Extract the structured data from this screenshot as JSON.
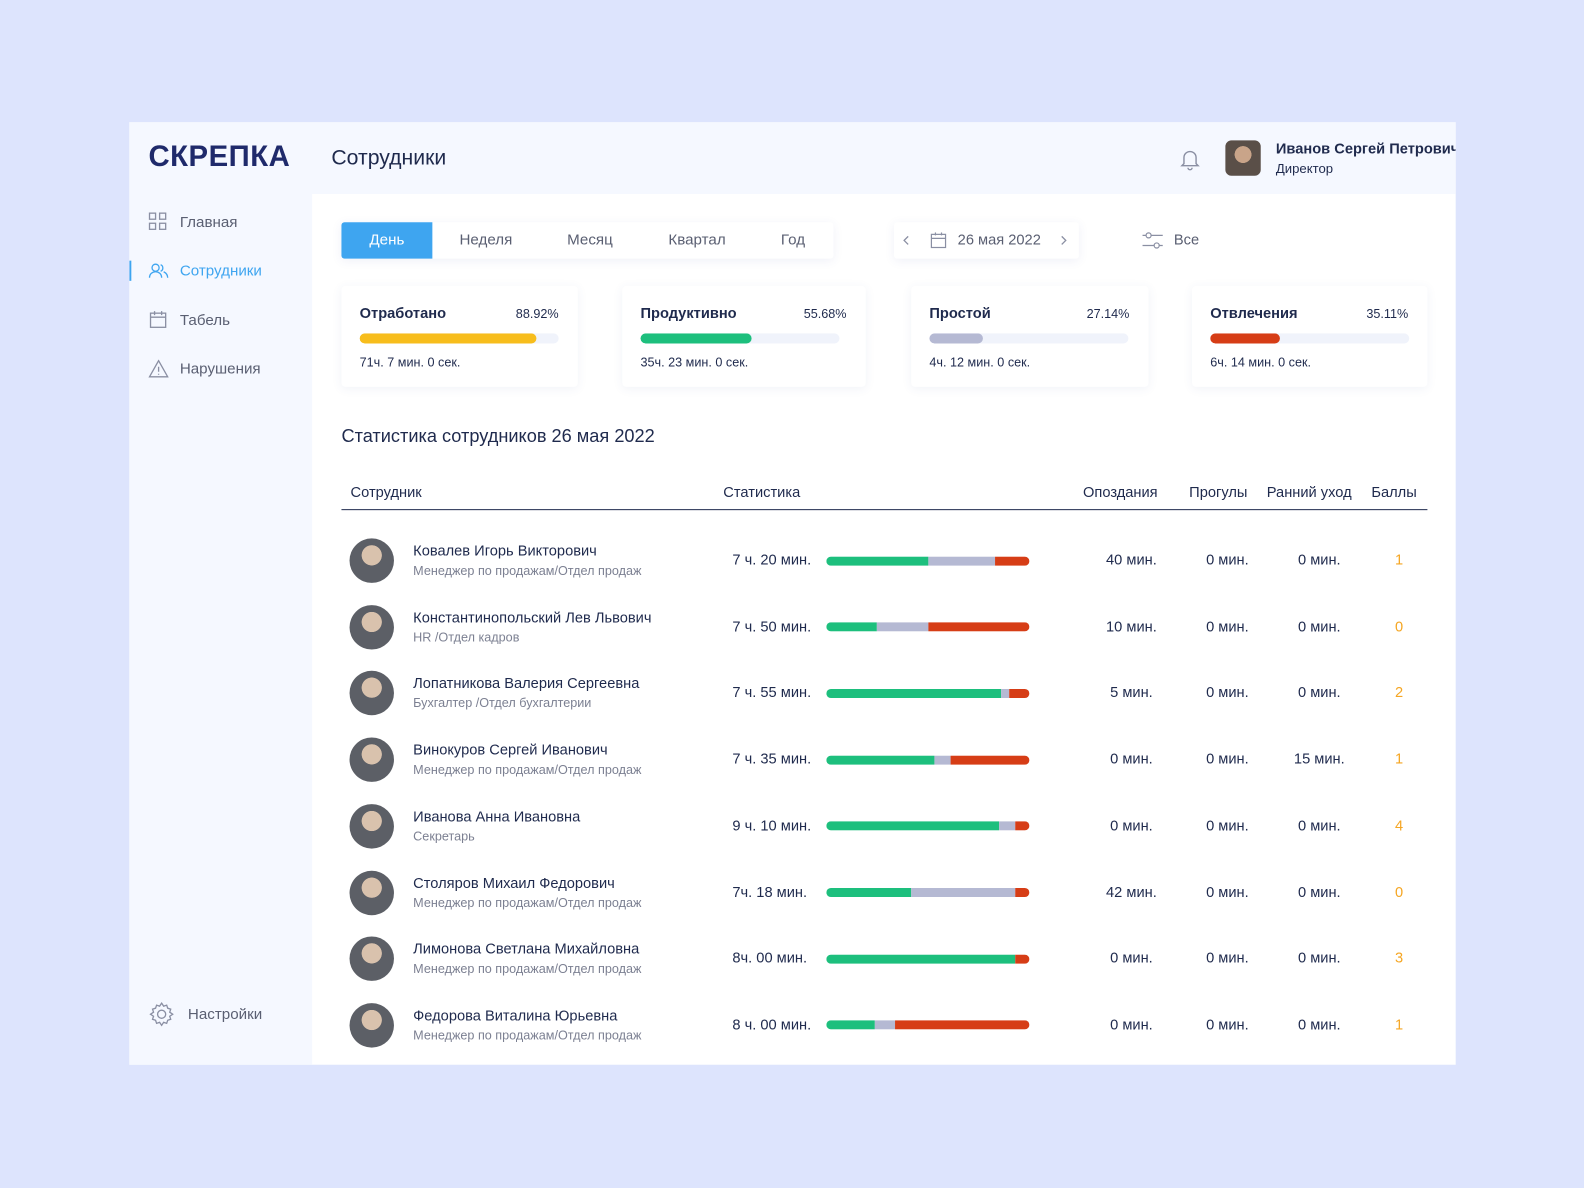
{
  "header": {
    "logo": "СКРЕПКА",
    "title": "Сотрудники",
    "user": {
      "name": "Иванов Сергей Петрович",
      "role": "Директор"
    }
  },
  "sidebar": {
    "items": [
      "Главная",
      "Сотрудники",
      "Табель",
      "Нарушения"
    ],
    "active": 1,
    "settings": "Настройки"
  },
  "periods": {
    "items": [
      "День",
      "Неделя",
      "Месяц",
      "Квартал",
      "Год"
    ],
    "active": 0
  },
  "date": "26 мая 2022",
  "filter": "Все",
  "cards": [
    {
      "title": "Отработано",
      "percent": {
        "value": 88.92,
        "label": "88.92%"
      },
      "color": "#f7bd1c",
      "time": "71ч. 7 мин. 0 сек."
    },
    {
      "title": "Продуктивно",
      "percent": {
        "value": 55.68,
        "label": "55.68%"
      },
      "color": "#1dbf7d",
      "time": "35ч. 23 мин. 0 сек."
    },
    {
      "title": "Простой",
      "percent": {
        "value": 27.14,
        "label": "27.14%"
      },
      "color": "#b5b9d3",
      "time": "4ч. 12 мин. 0 сек."
    },
    {
      "title": "Отвлечения",
      "percent": {
        "value": 35.11,
        "label": "35.11%"
      },
      "color": "#d63d16",
      "time": "6ч. 14 мин. 0 сек."
    }
  ],
  "table": {
    "title": "Статистика сотрудников 26 мая 2022",
    "columns": [
      "Сотрудник",
      "Статистика",
      "Опоздания",
      "Прогулы",
      "Ранний уход",
      "Баллы"
    ],
    "segment_colors": [
      "#1dbf7d",
      "#b5b9d3",
      "#d63d16"
    ],
    "rows": [
      {
        "name": "Ковалев Игорь Викторович",
        "position": "Менеджер по продажам/Отдел продаж",
        "duration": "7 ч. 20 мин.",
        "segments": [
          50,
          33,
          17
        ],
        "late": "40 мин.",
        "absences": "0 мин.",
        "early_leave": "0 мин.",
        "score": 1
      },
      {
        "name": "Константинопольский Лев Львович",
        "position": "HR /Отдел кадров",
        "duration": "7 ч. 50 мин.",
        "segments": [
          25,
          25,
          50
        ],
        "late": "10 мин.",
        "absences": "0 мин.",
        "early_leave": "0 мин.",
        "score": 0
      },
      {
        "name": "Лопатникова Валерия Сергеевна",
        "position": "Бухгалтер /Отдел бухгалтерии",
        "duration": "7 ч. 55 мин.",
        "segments": [
          86,
          4,
          10
        ],
        "late": "5 мин.",
        "absences": "0 мин.",
        "early_leave": "0 мин.",
        "score": 2
      },
      {
        "name": "Винокуров Сергей Иванович",
        "position": "Менеджер по продажам/Отдел продаж",
        "duration": "7 ч. 35 мин.",
        "segments": [
          53,
          8,
          39
        ],
        "late": "0 мин.",
        "absences": "0 мин.",
        "early_leave": "15 мин.",
        "score": 1
      },
      {
        "name": "Иванова Анна Ивановна",
        "position": "Секретарь",
        "duration": "9 ч. 10 мин.",
        "segments": [
          85,
          8,
          7
        ],
        "late": "0 мин.",
        "absences": "0 мин.",
        "early_leave": "0 мин.",
        "score": 4
      },
      {
        "name": "Столяров Михаил Федорович",
        "position": "Менеджер по продажам/Отдел продаж",
        "duration": "7ч. 18 мин.",
        "segments": [
          42,
          51,
          7
        ],
        "late": "42 мин.",
        "absences": "0 мин.",
        "early_leave": "0 мин.",
        "score": 0
      },
      {
        "name": "Лимонова Светлана Михайловна",
        "position": "Менеджер по продажам/Отдел продаж",
        "duration": "8ч. 00 мин.",
        "segments": [
          93,
          0,
          7
        ],
        "late": "0 мин.",
        "absences": "0 мин.",
        "early_leave": "0 мин.",
        "score": 3
      },
      {
        "name": "Федорова Виталина Юрьевна",
        "position": "Менеджер по продажам/Отдел продаж",
        "duration": "8 ч. 00 мин.",
        "segments": [
          24,
          10,
          66
        ],
        "late": "0 мин.",
        "absences": "0 мин.",
        "early_leave": "0 мин.",
        "score": 1
      }
    ]
  }
}
